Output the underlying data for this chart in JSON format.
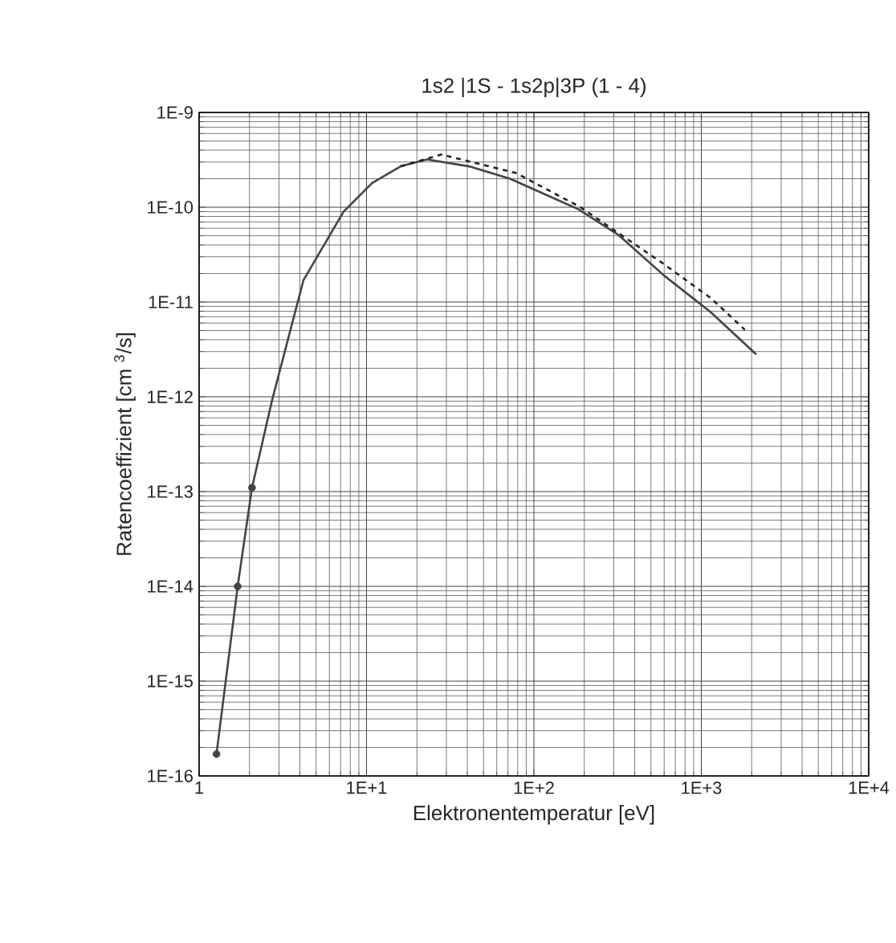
{
  "chart_data": {
    "type": "line",
    "title": "1s2 |1S - 1s2p|3P   (1 - 4)",
    "xlabel": "Elektronentemperatur [eV]",
    "ylabel": "Ratencoeffizient [cm $^{3}$/s]",
    "log": "xy",
    "grid": true,
    "xlim": [
      1,
      10000
    ],
    "ylim": [
      1e-16,
      1e-09
    ],
    "xticks": [
      {
        "value": 1,
        "label": "1"
      },
      {
        "value": 10,
        "label": "1E+1"
      },
      {
        "value": 100,
        "label": "1E+2"
      },
      {
        "value": 1000,
        "label": "1E+3"
      },
      {
        "value": 10000,
        "label": "1E+4"
      }
    ],
    "yticks": [
      {
        "value": 1e-16,
        "label": "1E-16"
      },
      {
        "value": 1e-15,
        "label": "1E-15"
      },
      {
        "value": 1e-14,
        "label": "1E-14"
      },
      {
        "value": 1e-13,
        "label": "1E-13"
      },
      {
        "value": 1e-12,
        "label": "1E-12"
      },
      {
        "value": 1e-11,
        "label": "1E-11"
      },
      {
        "value": 1e-10,
        "label": "1E-10"
      },
      {
        "value": 1e-09,
        "label": "1E-9"
      }
    ],
    "series": [
      {
        "color": "#444444",
        "line_style": "solid",
        "x": [
          1.27,
          1.7,
          2.07,
          2.72,
          4.2,
          7.3,
          10.8,
          16,
          23,
          41,
          72,
          185,
          320,
          600,
          1140,
          2130
        ],
        "values": [
          1.7e-16,
          1e-14,
          1.1e-13,
          9e-13,
          1.7e-11,
          9e-11,
          1.8e-10,
          2.7e-10,
          3.2e-10,
          2.7e-10,
          2e-10,
          9.5e-11,
          5.1e-11,
          1.9e-11,
          7.8e-12,
          2.8e-12
        ]
      },
      {
        "color": "#222222",
        "line_style": "dashed",
        "x": [
          16,
          28,
          78,
          190,
          600,
          1140,
          1820
        ],
        "values": [
          2.7e-10,
          3.6e-10,
          2.3e-10,
          1e-10,
          2.5e-11,
          1.1e-11,
          5.1e-12
        ]
      },
      {
        "type": "scatter",
        "color": "#444444",
        "marker": "circle",
        "x": [
          1.27,
          1.7,
          2.07
        ],
        "values": [
          1.7e-16,
          1e-14,
          1.1e-13
        ]
      }
    ]
  }
}
